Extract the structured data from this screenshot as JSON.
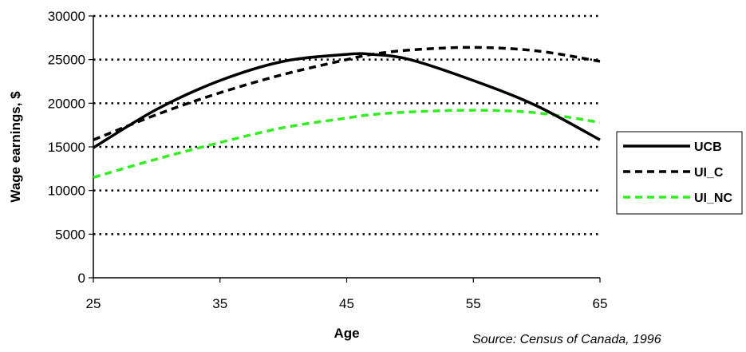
{
  "chart_data": {
    "type": "line",
    "xlabel": "Age",
    "ylabel": "Wage earnings, $",
    "xlim": [
      25,
      65
    ],
    "ylim": [
      0,
      30000
    ],
    "xticks": [
      25,
      35,
      45,
      55,
      65
    ],
    "yticks": [
      0,
      5000,
      10000,
      15000,
      20000,
      25000,
      30000
    ],
    "grid": "horizontal dotted",
    "legend_position": "right",
    "source_note": "Source: Census of Canada, 1996",
    "x": [
      25,
      30,
      35,
      40,
      45,
      47,
      50,
      55,
      60,
      65
    ],
    "series": [
      {
        "name": "UCB",
        "color": "#000000",
        "style": "solid",
        "values": [
          14900,
          19300,
          22600,
          24800,
          25600,
          25600,
          25000,
          22600,
          19700,
          15800
        ]
      },
      {
        "name": "UI_C",
        "color": "#000000",
        "style": "dashed",
        "values": [
          15800,
          18700,
          21200,
          23300,
          25000,
          25600,
          26100,
          26400,
          26000,
          24800
        ]
      },
      {
        "name": "UI_NC",
        "color": "#33ee22",
        "style": "dashed",
        "values": [
          11500,
          13600,
          15500,
          17200,
          18300,
          18700,
          19000,
          19200,
          18900,
          17800
        ]
      }
    ]
  }
}
